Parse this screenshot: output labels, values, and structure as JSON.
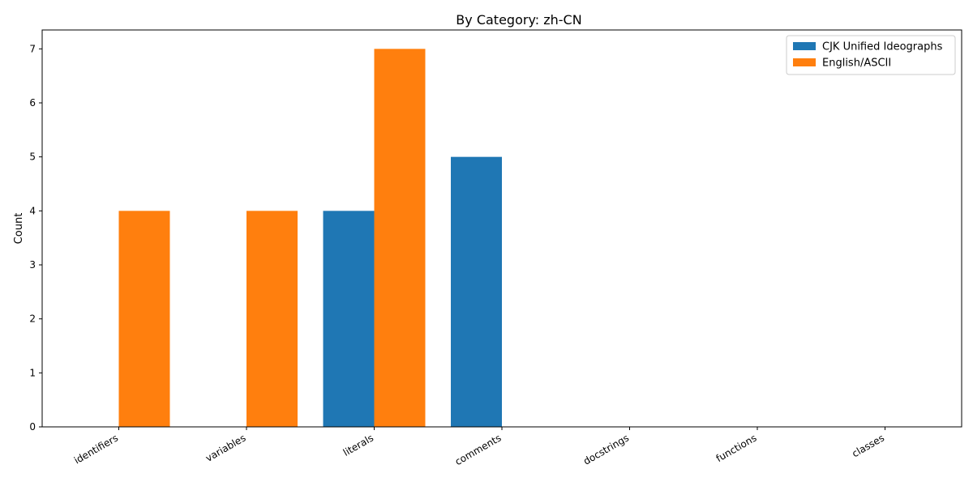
{
  "chart_data": {
    "type": "bar",
    "title": "By Category: zh-CN",
    "xlabel": "",
    "ylabel": "Count",
    "categories": [
      "identifiers",
      "variables",
      "literals",
      "comments",
      "docstrings",
      "functions",
      "classes"
    ],
    "series": [
      {
        "name": "CJK Unified Ideographs",
        "values": [
          0,
          0,
          4,
          5,
          0,
          0,
          0
        ],
        "color": "#1f77b4"
      },
      {
        "name": "English/ASCII",
        "values": [
          4,
          4,
          7,
          0,
          0,
          0,
          0
        ],
        "color": "#ff7f0e"
      }
    ],
    "ylim": [
      0,
      7.35
    ],
    "yticks": [
      0,
      1,
      2,
      3,
      4,
      5,
      6,
      7
    ],
    "grid": false,
    "legend_position": "top-right"
  }
}
